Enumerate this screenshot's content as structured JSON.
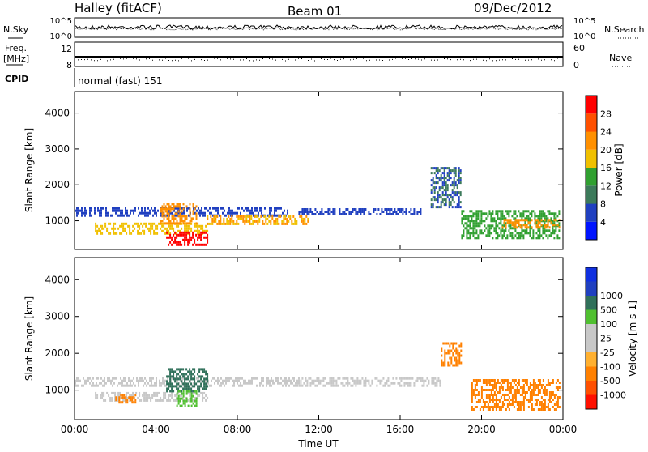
{
  "header": {
    "station": "Halley (fitACF)",
    "beam": "Beam 01",
    "date": "09/Dec/2012"
  },
  "panel_labels": {
    "nsky": "N.Sky",
    "nsearch": "N.Search",
    "freq": "Freq.",
    "freq_unit": "[MHz]",
    "nave": "Nave",
    "cpid": "CPID",
    "cpid_value": "normal (fast) 151"
  },
  "noise_axis": {
    "left_ticks": [
      "10^5",
      "10^0"
    ],
    "right_ticks": [
      "10^5",
      "10^0"
    ]
  },
  "freq_axis": {
    "left_ticks": [
      "12",
      "8"
    ],
    "right_ticks": [
      "60",
      "0"
    ]
  },
  "x_axis": {
    "label": "Time UT",
    "ticks": [
      "00:00",
      "04:00",
      "08:00",
      "12:00",
      "16:00",
      "20:00",
      "00:00"
    ]
  },
  "colors": {
    "power_scale": [
      "#0014ff",
      "#2040c0",
      "#3c7a5a",
      "#30a030",
      "#f0c000",
      "#ff9000",
      "#ff5000",
      "#ff0000"
    ],
    "velocity_scale": [
      "#ff1000",
      "#ff5000",
      "#ff8000",
      "#ffb030",
      "#c8c8c8",
      "#c8c8c8",
      "#50c030",
      "#30705a",
      "#2040c0",
      "#1030e0"
    ]
  },
  "chart_data": [
    {
      "type": "heatmap",
      "title": "Power",
      "xlabel": "Time UT",
      "ylabel": "Slant Range [km]",
      "xlim": [
        0,
        24
      ],
      "ylim": [
        200,
        4600
      ],
      "yticks": [
        1000,
        2000,
        3000,
        4000
      ],
      "colorbar": {
        "label": "Power [dB]",
        "ticks": [
          "4",
          "8",
          "12",
          "16",
          "20",
          "24",
          "28"
        ],
        "range": [
          0,
          32
        ]
      },
      "regions": [
        {
          "t0": 0.0,
          "t1": 10.5,
          "r0": 1150,
          "r1": 1380,
          "value": 6
        },
        {
          "t0": 1.0,
          "t1": 6.5,
          "r0": 650,
          "r1": 950,
          "value": 18
        },
        {
          "t0": 4.2,
          "t1": 6.0,
          "r0": 900,
          "r1": 1500,
          "value": 22
        },
        {
          "t0": 4.5,
          "t1": 6.5,
          "r0": 350,
          "r1": 700,
          "value": 30
        },
        {
          "t0": 6.5,
          "t1": 11.5,
          "r0": 900,
          "r1": 1150,
          "value": 20
        },
        {
          "t0": 11.0,
          "t1": 17.0,
          "r0": 1150,
          "r1": 1350,
          "value": 6
        },
        {
          "t0": 17.5,
          "t1": 19.0,
          "r0": 1400,
          "r1": 2500,
          "value": 8
        },
        {
          "t0": 19.0,
          "t1": 23.8,
          "r0": 550,
          "r1": 1300,
          "value": 14
        },
        {
          "t0": 21.0,
          "t1": 23.8,
          "r0": 800,
          "r1": 1050,
          "value": 22
        }
      ]
    },
    {
      "type": "heatmap",
      "title": "Velocity",
      "xlabel": "Time UT",
      "ylabel": "Slant Range [km]",
      "xlim": [
        0,
        24
      ],
      "ylim": [
        200,
        4600
      ],
      "yticks": [
        1000,
        2000,
        3000,
        4000
      ],
      "colorbar": {
        "label": "Velocity [m s-1]",
        "ticks": [
          "-1000",
          "-500",
          "-100",
          "-25",
          "25",
          "100",
          "500",
          "1000"
        ]
      },
      "regions": [
        {
          "t0": 0.0,
          "t1": 11.0,
          "r0": 1150,
          "r1": 1350,
          "value": 0
        },
        {
          "t0": 1.0,
          "t1": 6.5,
          "r0": 700,
          "r1": 950,
          "value": 0
        },
        {
          "t0": 2.0,
          "t1": 3.0,
          "r0": 650,
          "r1": 900,
          "value": -150
        },
        {
          "t0": 4.5,
          "t1": 6.5,
          "r0": 1000,
          "r1": 1600,
          "value": 200
        },
        {
          "t0": 5.0,
          "t1": 6.0,
          "r0": 600,
          "r1": 1000,
          "value": 60
        },
        {
          "t0": 11.0,
          "t1": 18.0,
          "r0": 1150,
          "r1": 1350,
          "value": 0
        },
        {
          "t0": 19.5,
          "t1": 23.8,
          "r0": 500,
          "r1": 1300,
          "value": -400
        },
        {
          "t0": 18.0,
          "t1": 19.0,
          "r0": 1700,
          "r1": 2300,
          "value": -150
        }
      ]
    }
  ]
}
